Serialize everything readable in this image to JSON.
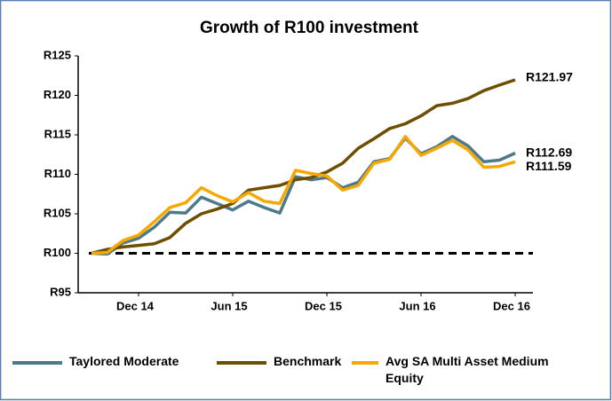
{
  "chart_data": {
    "type": "line",
    "title": "Growth of R100 investment",
    "categories": [
      null,
      null,
      null,
      "Dec 14",
      null,
      null,
      null,
      null,
      null,
      "Jun 15",
      null,
      null,
      null,
      null,
      null,
      "Dec 15",
      null,
      null,
      null,
      null,
      null,
      "Jun 16",
      null,
      null,
      null,
      null,
      null,
      "Dec 16"
    ],
    "ylim": [
      95,
      125
    ],
    "yticks": [
      {
        "value": 95,
        "label": "R95"
      },
      {
        "value": 100,
        "label": "R100"
      },
      {
        "value": 105,
        "label": "R105"
      },
      {
        "value": 110,
        "label": "R110"
      },
      {
        "value": 115,
        "label": "R115"
      },
      {
        "value": 120,
        "label": "R120"
      },
      {
        "value": 125,
        "label": "R125"
      }
    ],
    "reference_line": 100,
    "legend": "bottom",
    "series": [
      {
        "name": "Taylored Moderate",
        "color": "#4d7a8a",
        "end_label": "R112.69",
        "values": [
          100,
          99.9,
          101.3,
          101.9,
          103.3,
          105.2,
          105.1,
          107.1,
          106.3,
          105.5,
          106.6,
          105.8,
          105.1,
          109.7,
          109.3,
          109.6,
          108.3,
          109,
          111.6,
          112,
          114.6,
          112.6,
          113.5,
          114.8,
          113.6,
          111.6,
          111.8,
          112.69
        ]
      },
      {
        "name": "Benchmark",
        "color": "#6e4f00",
        "end_label": "R121.97",
        "values": [
          100,
          100.5,
          100.8,
          101,
          101.2,
          102,
          103.8,
          105,
          105.6,
          106.3,
          108,
          108.3,
          108.6,
          109.3,
          109.6,
          110.3,
          111.4,
          113.3,
          114.5,
          115.8,
          116.4,
          117.4,
          118.7,
          119,
          119.6,
          120.6,
          121.3,
          121.97
        ]
      },
      {
        "name": "Avg SA Multi Asset Medium Equity",
        "color": "#f7a800",
        "end_label": "R111.59",
        "values": [
          100,
          100.1,
          101.6,
          102.3,
          104,
          105.8,
          106.4,
          108.3,
          107.3,
          106.5,
          107.7,
          106.6,
          106.3,
          110.5,
          110.1,
          109.8,
          108,
          108.6,
          111.4,
          111.9,
          114.8,
          112.4,
          113.3,
          114.3,
          113.1,
          110.9,
          111,
          111.59
        ]
      }
    ]
  }
}
